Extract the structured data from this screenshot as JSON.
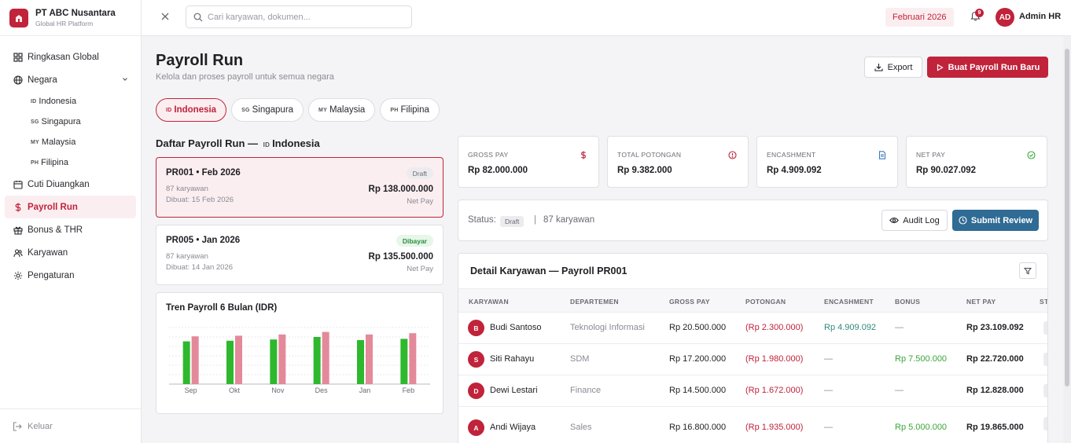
{
  "brand": {
    "name": "PT ABC Nusantara",
    "subtitle": "Global HR Platform"
  },
  "sidebar": {
    "items": [
      {
        "label": "Ringkasan Global",
        "icon": "grid-icon"
      },
      {
        "label": "Negara",
        "icon": "globe-icon"
      },
      {
        "label": "Cuti Diuangkan",
        "icon": "calendar-icon"
      },
      {
        "label": "Payroll Run",
        "icon": "dollar-icon",
        "active": true
      },
      {
        "label": "Bonus & THR",
        "icon": "gift-icon"
      },
      {
        "label": "Karyawan",
        "icon": "users-icon"
      },
      {
        "label": "Pengaturan",
        "icon": "gear-icon"
      }
    ],
    "countries": [
      {
        "code": "ID",
        "label": "Indonesia"
      },
      {
        "code": "SG",
        "label": "Singapura"
      },
      {
        "code": "MY",
        "label": "Malaysia"
      },
      {
        "code": "PH",
        "label": "Filipina"
      }
    ],
    "logout": "Keluar"
  },
  "topbar": {
    "search_placeholder": "Cari karyawan, dokumen...",
    "period": "Februari 2026",
    "notification_count": "9",
    "avatar_initials": "AD",
    "user_name": "Admin HR"
  },
  "page": {
    "title": "Payroll Run",
    "subtitle": "Kelola dan proses payroll untuk semua negara",
    "export_label": "Export",
    "new_run_label": "Buat Payroll Run Baru"
  },
  "country_tabs": [
    {
      "code": "ID",
      "label": "Indonesia",
      "active": true
    },
    {
      "code": "SG",
      "label": "Singapura"
    },
    {
      "code": "MY",
      "label": "Malaysia"
    },
    {
      "code": "PH",
      "label": "Filipina"
    }
  ],
  "run_list": {
    "title_prefix": "Daftar Payroll Run —",
    "title_code": "ID",
    "title_country": "Indonesia",
    "runs": [
      {
        "id": "PR001 • Feb 2026",
        "status": "Draft",
        "employees": "87 karyawan",
        "created": "Dibuat: 15 Feb 2026",
        "amount": "Rp 138.000.000",
        "amount_label": "Net Pay"
      },
      {
        "id": "PR005 • Jan 2026",
        "status": "Dibayar",
        "employees": "87 karyawan",
        "created": "Dibuat: 14 Jan 2026",
        "amount": "Rp 135.500.000",
        "amount_label": "Net Pay"
      }
    ]
  },
  "trend": {
    "title": "Tren Payroll 6 Bulan (IDR)"
  },
  "chart_data": {
    "type": "bar",
    "title": "Tren Payroll 6 Bulan (IDR)",
    "categories": [
      "Sep",
      "Okt",
      "Nov",
      "Des",
      "Jan",
      "Feb"
    ],
    "series": [
      {
        "values": [
          128,
          129,
          131,
          135,
          130,
          132
        ],
        "color": "#2eb82e"
      },
      {
        "values": [
          136,
          137,
          139,
          143,
          139,
          141
        ],
        "color": "#e3899a"
      }
    ],
    "ylim": [
      60,
      150
    ],
    "grid": true
  },
  "stats": [
    {
      "label": "GROSS PAY",
      "value": "Rp 82.000.000",
      "icon": "dollar-icon",
      "color": "#c0233a"
    },
    {
      "label": "TOTAL POTONGAN",
      "value": "Rp 9.382.000",
      "icon": "alert-circle-icon",
      "color": "#c0233a"
    },
    {
      "label": "ENCASHMENT",
      "value": "Rp 4.909.092",
      "icon": "document-icon",
      "color": "#3b7bc0"
    },
    {
      "label": "NET PAY",
      "value": "Rp 90.027.092",
      "icon": "check-circle-icon",
      "color": "#3aa63a"
    }
  ],
  "status_bar": {
    "label": "Status:",
    "status": "Draft",
    "separator": "|",
    "employees": "87 karyawan",
    "audit_label": "Audit Log",
    "submit_label": "Submit Review"
  },
  "detail": {
    "title": "Detail Karyawan — Payroll PR001",
    "columns": [
      "KARYAWAN",
      "DEPARTEMEN",
      "GROSS PAY",
      "POTONGAN",
      "ENCASHMENT",
      "BONUS",
      "NET PAY",
      "ST"
    ],
    "rows": [
      {
        "initial": "B",
        "name": "Budi Santoso",
        "dept": "Teknologi Informasi",
        "gross": "Rp 20.500.000",
        "deduction": "(Rp 2.300.000)",
        "encashment": "Rp 4.909.092",
        "bonus": "—",
        "net": "Rp 23.109.092"
      },
      {
        "initial": "S",
        "name": "Siti Rahayu",
        "dept": "SDM",
        "gross": "Rp 17.200.000",
        "deduction": "(Rp 1.980.000)",
        "encashment": "—",
        "bonus": "Rp 7.500.000",
        "net": "Rp 22.720.000"
      },
      {
        "initial": "D",
        "name": "Dewi Lestari",
        "dept": "Finance",
        "gross": "Rp 14.500.000",
        "deduction": "(Rp 1.672.000)",
        "encashment": "—",
        "bonus": "—",
        "net": "Rp 12.828.000"
      },
      {
        "initial": "A",
        "name": "Andi Wijaya",
        "dept": "Sales",
        "gross": "Rp 16.800.000",
        "deduction": "(Rp 1.935.000)",
        "encashment": "—",
        "bonus": "Rp 5.000.000",
        "net": "Rp 19.865.000"
      }
    ]
  }
}
